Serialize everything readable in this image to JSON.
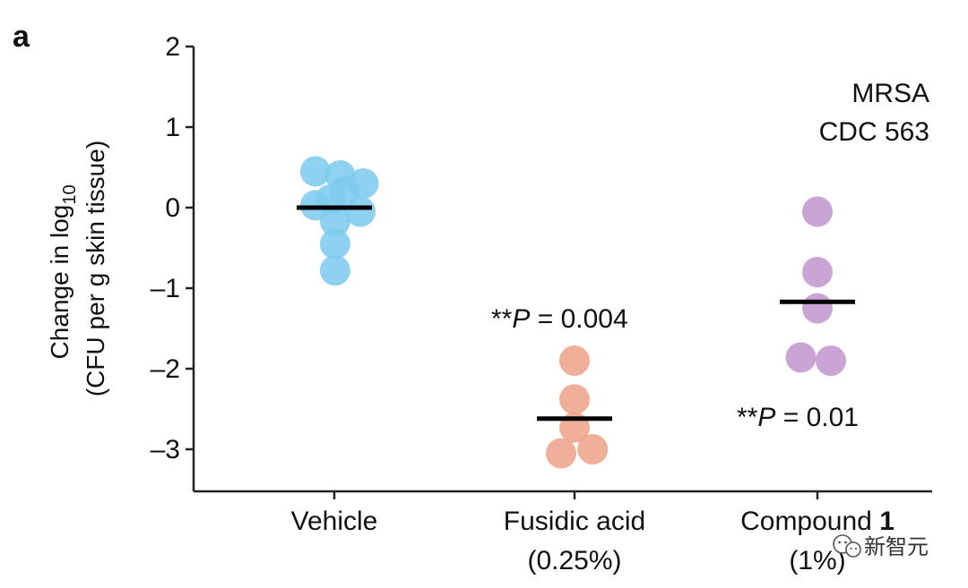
{
  "panel_label": "a",
  "chart_data": {
    "type": "scatter",
    "ylabel_line1": "Change in log",
    "ylabel_sub": "10",
    "ylabel_line2": "(CFU per g skin tissue)",
    "ylim": [
      -3.5,
      2
    ],
    "yticks": [
      2,
      1,
      0,
      -1,
      -2,
      -3
    ],
    "ytick_labels": [
      "2",
      "1",
      "0",
      "–1",
      "–2",
      "–3"
    ],
    "categories": [
      {
        "line1": "Vehicle",
        "line2": "",
        "bold": ""
      },
      {
        "line1": "Fusidic acid",
        "line2": "(0.25%)",
        "bold": ""
      },
      {
        "line1": "Compound ",
        "line2": "(1%)",
        "bold": "1"
      }
    ],
    "series": [
      {
        "color": "#7ecbee",
        "points": [
          {
            "jitter": -0.48,
            "y": 0.45
          },
          {
            "jitter": -0.48,
            "y": 0.03
          },
          {
            "jitter": -0.1,
            "y": 0.1
          },
          {
            "jitter": 0.15,
            "y": 0.4
          },
          {
            "jitter": 0.26,
            "y": 0.2
          },
          {
            "jitter": 0.74,
            "y": 0.3
          },
          {
            "jitter": 0.66,
            "y": -0.05
          },
          {
            "jitter": 0.02,
            "y": -0.17
          },
          {
            "jitter": 0.02,
            "y": -0.45
          },
          {
            "jitter": 0.02,
            "y": -0.78
          }
        ],
        "mean": 0.0
      },
      {
        "color": "#eda48a",
        "points": [
          {
            "jitter": 0.0,
            "y": -1.9
          },
          {
            "jitter": 0.0,
            "y": -2.38
          },
          {
            "jitter": 0.0,
            "y": -2.73
          },
          {
            "jitter": -0.34,
            "y": -3.05
          },
          {
            "jitter": 0.46,
            "y": -3.0
          }
        ],
        "mean": -2.62
      },
      {
        "color": "#c397cf",
        "points": [
          {
            "jitter": 0.0,
            "y": -0.05
          },
          {
            "jitter": 0.0,
            "y": -0.8
          },
          {
            "jitter": 0.0,
            "y": -1.25
          },
          {
            "jitter": -0.42,
            "y": -1.86
          },
          {
            "jitter": 0.34,
            "y": -1.9
          }
        ],
        "mean": -1.17
      }
    ],
    "annotations": [
      {
        "id": "strain-line1",
        "text": "MRSA"
      },
      {
        "id": "strain-line2",
        "text": "CDC 563"
      },
      {
        "id": "pval-fusidic",
        "stars": "**",
        "p": "P",
        "rest": " = 0.004"
      },
      {
        "id": "pval-compound",
        "stars": "**",
        "p": "P",
        "rest": " = 0.01"
      }
    ]
  },
  "watermark": {
    "icon": "wechat-icon",
    "text": "新智元"
  }
}
